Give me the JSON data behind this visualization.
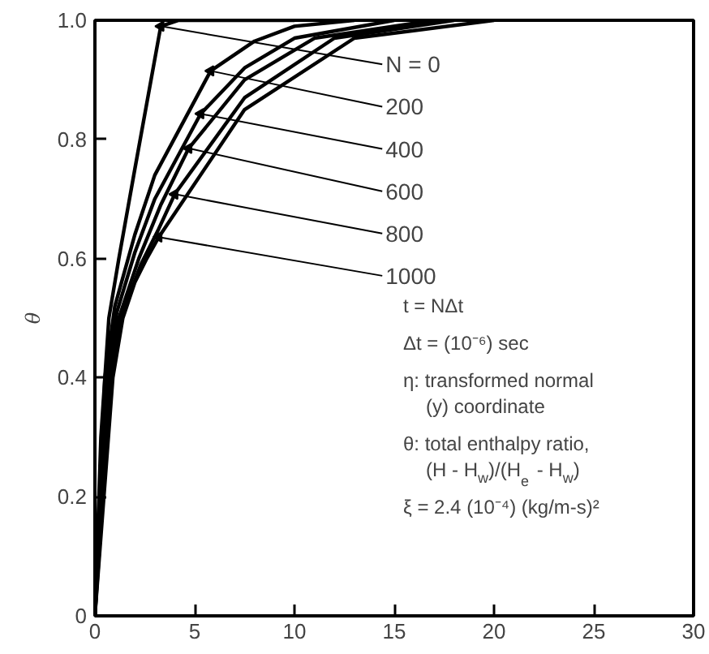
{
  "chart_data": {
    "type": "line",
    "ylabel": "θ",
    "xlim": [
      0,
      30
    ],
    "ylim": [
      0,
      1.0
    ],
    "xticks": [
      0,
      5,
      10,
      15,
      20,
      25,
      30
    ],
    "yticks": [
      0,
      0.2,
      0.4,
      0.6,
      0.8,
      {
        "value": 1,
        "label": "1.0"
      }
    ],
    "grid": false,
    "marker": "none",
    "line_style": "solid",
    "series": [
      {
        "name": "N = 0",
        "color": "#000000",
        "x": [
          0,
          0.3,
          0.7,
          1.2,
          2.0,
          3.3,
          4.2,
          6,
          10
        ],
        "values": [
          0,
          0.3,
          0.5,
          0.6,
          0.75,
          0.99,
          1.0,
          1.0,
          1.0
        ]
      },
      {
        "name": "200",
        "color": "#000000",
        "x": [
          0,
          0.5,
          1,
          2,
          3,
          5.8,
          8,
          10,
          13
        ],
        "values": [
          0,
          0.4,
          0.52,
          0.64,
          0.74,
          0.915,
          0.965,
          0.99,
          1.0
        ]
      },
      {
        "name": "400",
        "color": "#000000",
        "x": [
          0,
          0.6,
          1.1,
          2,
          3,
          5.3,
          7.5,
          10,
          15
        ],
        "values": [
          0,
          0.4,
          0.51,
          0.61,
          0.7,
          0.843,
          0.92,
          0.97,
          1.0
        ]
      },
      {
        "name": "600",
        "color": "#000000",
        "x": [
          0,
          0.7,
          1.2,
          2.2,
          3.3,
          4.7,
          7.5,
          11,
          17
        ],
        "values": [
          0,
          0.4,
          0.5,
          0.6,
          0.69,
          0.785,
          0.9,
          0.97,
          1.0
        ]
      },
      {
        "name": "800",
        "color": "#000000",
        "x": [
          0,
          0.8,
          1.3,
          2.3,
          3.2,
          4.0,
          7.5,
          12,
          18
        ],
        "values": [
          0,
          0.4,
          0.5,
          0.59,
          0.65,
          0.708,
          0.87,
          0.97,
          1.0
        ]
      },
      {
        "name": "1000",
        "color": "#000000",
        "x": [
          0,
          0.9,
          1.4,
          2.0,
          2.6,
          3.2,
          7.5,
          13,
          20
        ],
        "values": [
          0,
          0.4,
          0.5,
          0.56,
          0.6,
          0.636,
          0.85,
          0.97,
          1.0
        ]
      }
    ],
    "annotations": [
      "t = NΔt",
      "Δt = (10⁻⁶) sec",
      "η: transformed normal",
      "(y) coordinate",
      "θ: total enthalpy ratio,",
      "(H - H$_{w}$)/(H$_{e}$ - H$_{w}$)",
      "ξ = 2.4 (10⁻⁴) (kg/m-s)²"
    ]
  }
}
